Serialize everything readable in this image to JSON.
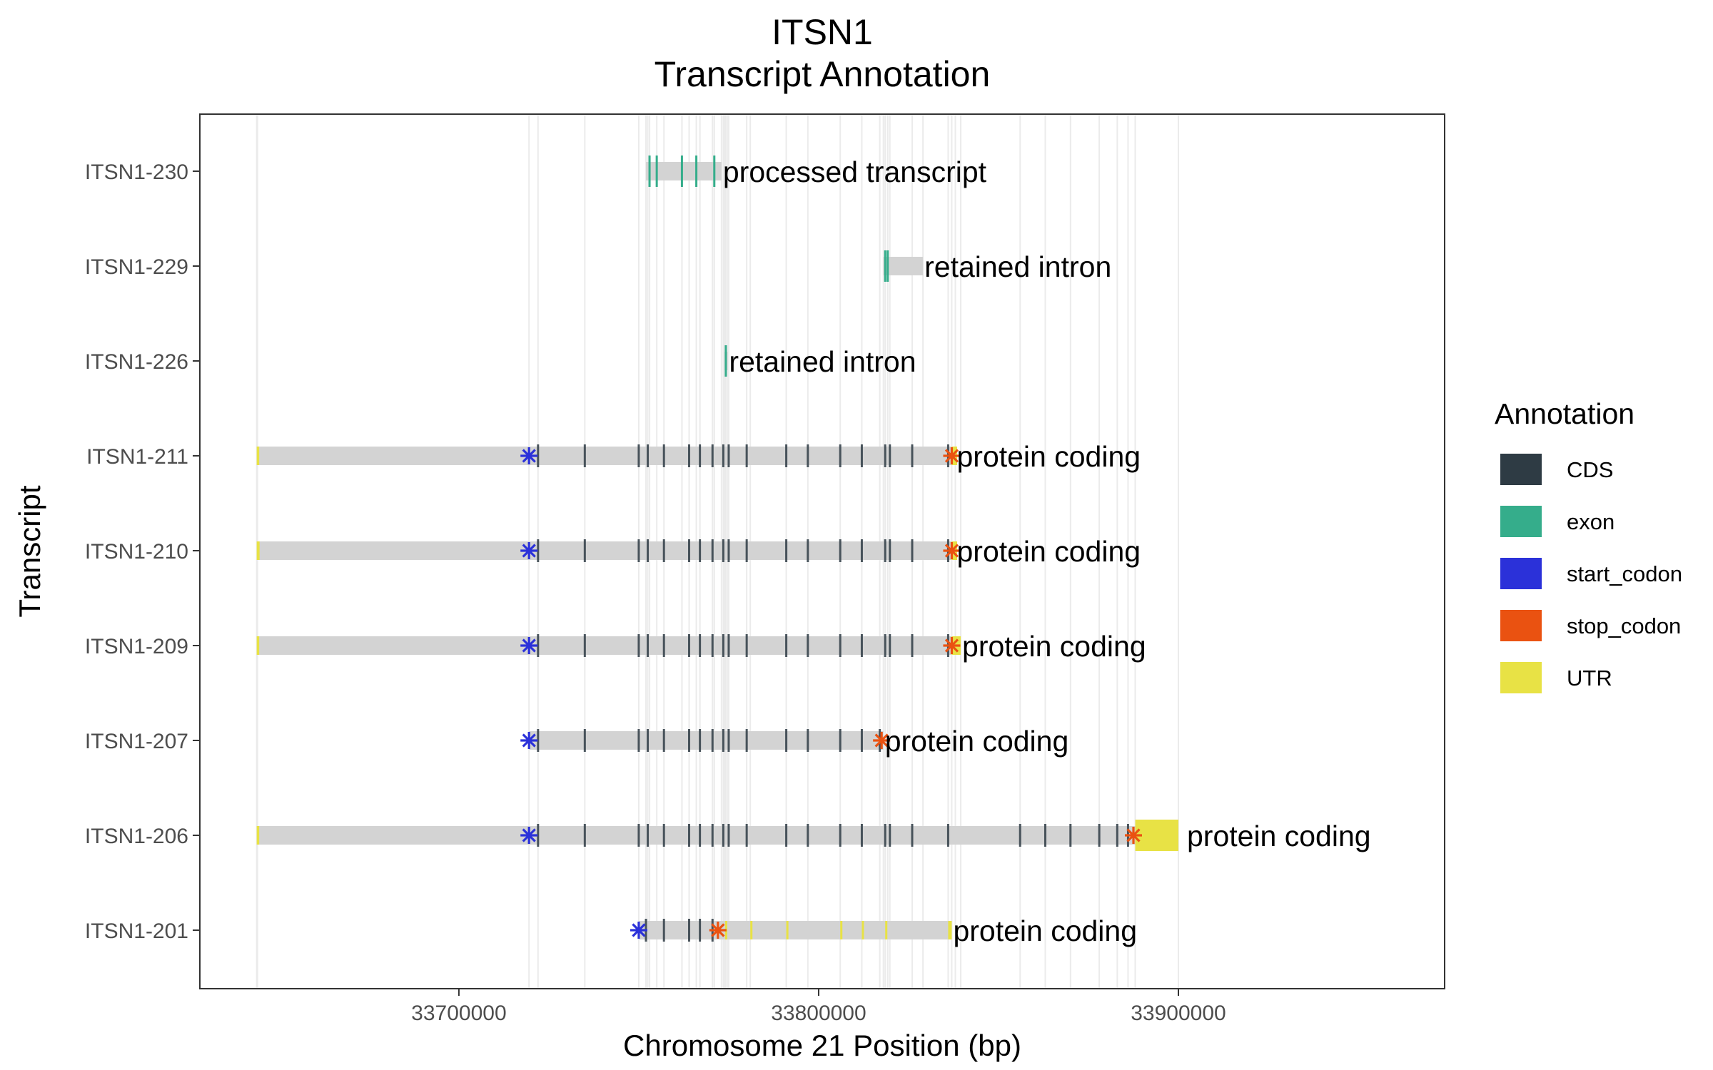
{
  "chart_data": {
    "type": "gene-track",
    "title": "ITSN1",
    "subtitle": "Transcript Annotation",
    "xlabel": "Chromosome 21 Position (bp)",
    "ylabel": "Transcript",
    "xlim": [
      33628000,
      33974000
    ],
    "xticks": [
      {
        "value": 33700000,
        "label": "33700000"
      },
      {
        "value": 33800000,
        "label": "33800000"
      },
      {
        "value": 33900000,
        "label": "33900000"
      }
    ],
    "grid": true,
    "legend": {
      "title": "Annotation",
      "position": "right",
      "items": [
        {
          "label": "CDS",
          "color": "#2e3b44"
        },
        {
          "label": "exon",
          "color": "#35ad8b"
        },
        {
          "label": "start_codon",
          "color": "#2b31d9"
        },
        {
          "label": "stop_codon",
          "color": "#ea5211"
        },
        {
          "label": "UTR",
          "color": "#e8e245"
        }
      ]
    },
    "intron_color": "#d3d3d3",
    "transcripts": [
      {
        "name": "ITSN1-230",
        "biotype": "processed transcript",
        "start": 33752000,
        "end": 33773000,
        "exons": [
          33753000,
          33755000,
          33762000,
          33766000,
          33771000
        ]
      },
      {
        "name": "ITSN1-229",
        "biotype": "retained intron",
        "start": 33818000,
        "end": 33829000,
        "exons": [
          33818500,
          33819200
        ]
      },
      {
        "name": "ITSN1-226",
        "biotype": "retained intron",
        "start": 33773800,
        "end": 33774700,
        "exons": [
          33774200
        ]
      },
      {
        "name": "ITSN1-211",
        "biotype": "protein coding",
        "start": 33644000,
        "end": 33838000,
        "start_codon": 33719500,
        "stop_codon": 33837000,
        "cds": [
          33722000,
          33735000,
          33750000,
          33752500,
          33757000,
          33764000,
          33767000,
          33770500,
          33773500,
          33775000,
          33780000,
          33791000,
          33797000,
          33806000,
          33812000,
          33818500,
          33819800,
          33826000,
          33836000
        ],
        "utr": [
          [
            33643800,
            33644500
          ],
          [
            33837000,
            33838500
          ]
        ]
      },
      {
        "name": "ITSN1-210",
        "biotype": "protein coding",
        "start": 33644000,
        "end": 33838000,
        "start_codon": 33719500,
        "stop_codon": 33837000,
        "cds": [
          33722000,
          33735000,
          33750000,
          33752500,
          33757000,
          33764000,
          33767000,
          33770500,
          33773500,
          33775000,
          33780000,
          33791000,
          33797000,
          33806000,
          33812000,
          33818500,
          33819800,
          33826000,
          33836000
        ],
        "utr": [
          [
            33643800,
            33644600
          ],
          [
            33837000,
            33838500
          ]
        ]
      },
      {
        "name": "ITSN1-209",
        "biotype": "protein coding",
        "start": 33644000,
        "end": 33839500,
        "start_codon": 33719500,
        "stop_codon": 33837000,
        "cds": [
          33722000,
          33735000,
          33750000,
          33752500,
          33757000,
          33764000,
          33767000,
          33770500,
          33773500,
          33775000,
          33780000,
          33791000,
          33797000,
          33806000,
          33812000,
          33818500,
          33819800,
          33826000,
          33836000
        ],
        "utr": [
          [
            33643800,
            33644500
          ],
          [
            33837000,
            33839500
          ]
        ]
      },
      {
        "name": "ITSN1-207",
        "biotype": "protein coding",
        "start": 33719500,
        "end": 33818000,
        "start_codon": 33719500,
        "stop_codon": 33817500,
        "cds": [
          33722000,
          33735000,
          33750000,
          33752500,
          33757000,
          33764000,
          33767000,
          33770500,
          33773500,
          33775000,
          33780000,
          33791000,
          33797000,
          33806000,
          33812000,
          33817000
        ],
        "utr": []
      },
      {
        "name": "ITSN1-206",
        "biotype": "protein coding",
        "start": 33644000,
        "end": 33900000,
        "start_codon": 33719500,
        "stop_codon": 33887500,
        "cds": [
          33722000,
          33735000,
          33750000,
          33752500,
          33757000,
          33764000,
          33767000,
          33770500,
          33773500,
          33775000,
          33780000,
          33791000,
          33797000,
          33806000,
          33812000,
          33818500,
          33819800,
          33826000,
          33836000,
          33856000,
          33863000,
          33870000,
          33878000,
          33883000,
          33886000
        ],
        "utr": [
          [
            33643800,
            33644500
          ],
          [
            33888000,
            33900000
          ]
        ]
      },
      {
        "name": "ITSN1-201",
        "biotype": "protein coding",
        "start": 33750000,
        "end": 33837000,
        "start_codon": 33750000,
        "stop_codon": 33772000,
        "cds": [
          33752000,
          33757000,
          33764000,
          33767000,
          33770500
        ],
        "utr": [
          [
            33774000,
            33774600
          ],
          [
            33781000,
            33781600
          ],
          [
            33791000,
            33791600
          ],
          [
            33806000,
            33806600
          ],
          [
            33812000,
            33812600
          ],
          [
            33818500,
            33819100
          ],
          [
            33836000,
            33837000
          ]
        ]
      }
    ]
  }
}
